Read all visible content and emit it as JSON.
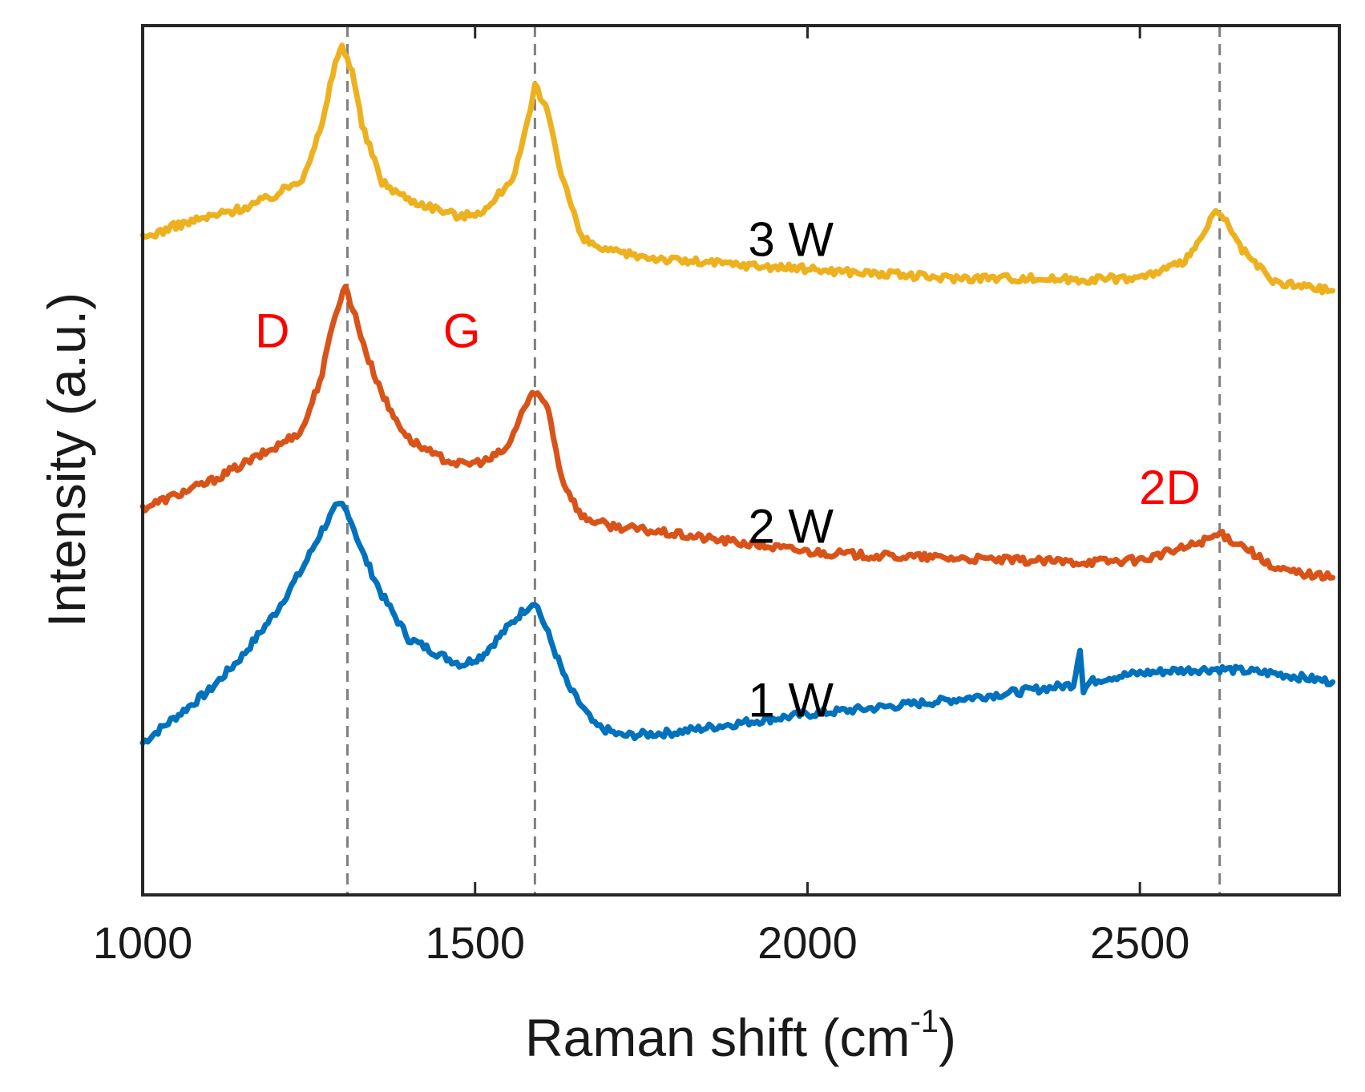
{
  "chart_data": {
    "type": "line",
    "xlabel": "Raman shift (cm",
    "xlabel_sup": "-1",
    "xlabel_close": ")",
    "ylabel": "Intensity (a.u.)",
    "xlim": [
      1000,
      2800
    ],
    "ylim": [
      0,
      100
    ],
    "y_ticks_shown": false,
    "xticks": [
      1000,
      1500,
      2000,
      2500
    ],
    "xtick_labels": [
      "1000",
      "1500",
      "2000",
      "2500"
    ],
    "grid": false,
    "reference_lines": [
      {
        "x": 1308,
        "style": "dashed",
        "color": "#7f7f7f"
      },
      {
        "x": 1590,
        "style": "dashed",
        "color": "#7f7f7f"
      },
      {
        "x": 2620,
        "style": "dashed",
        "color": "#7f7f7f"
      }
    ],
    "series": [
      {
        "name": "1 W",
        "color": "#0072BD",
        "x": [
          1000,
          1050,
          1100,
          1150,
          1200,
          1240,
          1270,
          1290,
          1300,
          1310,
          1330,
          1360,
          1400,
          1450,
          1480,
          1510,
          1540,
          1570,
          1590,
          1610,
          1640,
          1680,
          1720,
          1800,
          1900,
          2000,
          2100,
          2200,
          2300,
          2400,
          2410,
          2415,
          2425,
          2450,
          2500,
          2550,
          2620,
          2700,
          2790
        ],
        "y": [
          17.5,
          20.5,
          23.5,
          27.5,
          32.5,
          37.5,
          42,
          44.5,
          44.8,
          43.8,
          39.5,
          34.5,
          29.5,
          27.5,
          26.5,
          27.5,
          30,
          32.5,
          33.8,
          30,
          24,
          19.5,
          18.3,
          18.7,
          19.8,
          20.8,
          21.5,
          22.3,
          23.2,
          24.2,
          28.5,
          23.5,
          24.5,
          25,
          25.5,
          25.8,
          26,
          25.5,
          24.5
        ]
      },
      {
        "name": "2 W",
        "color": "#D95319",
        "x": [
          1000,
          1050,
          1100,
          1150,
          1200,
          1240,
          1270,
          1290,
          1305,
          1320,
          1340,
          1370,
          1400,
          1440,
          1480,
          1520,
          1550,
          1570,
          1590,
          1610,
          1630,
          1660,
          1700,
          1800,
          1900,
          2000,
          2100,
          2200,
          2300,
          2400,
          2500,
          2570,
          2620,
          2660,
          2700,
          2790
        ],
        "y": [
          44.5,
          46,
          47.5,
          49.5,
          51.5,
          53.5,
          60,
          67,
          70,
          66.5,
          61.5,
          56,
          52.5,
          50.5,
          49.5,
          50,
          51.5,
          55.5,
          58,
          56,
          48,
          43.5,
          42.5,
          41.5,
          40.5,
          39.5,
          39,
          38.8,
          38.5,
          38.3,
          38.5,
          40,
          41.5,
          40,
          37.5,
          36.5
        ]
      },
      {
        "name": "3 W",
        "color": "#EDB120",
        "x": [
          1000,
          1050,
          1100,
          1150,
          1200,
          1240,
          1270,
          1290,
          1300,
          1315,
          1330,
          1360,
          1400,
          1440,
          1480,
          1520,
          1560,
          1580,
          1590,
          1610,
          1630,
          1660,
          1700,
          1800,
          1900,
          2000,
          2100,
          2200,
          2300,
          2400,
          2500,
          2560,
          2590,
          2610,
          2630,
          2650,
          2700,
          2790
        ],
        "y": [
          75.5,
          77,
          78,
          79,
          80.5,
          82.5,
          88.5,
          96,
          97.5,
          95,
          88.5,
          82,
          80,
          79,
          78,
          79,
          83,
          89,
          93,
          90,
          83,
          75.5,
          74,
          73,
          72.5,
          72,
          71.5,
          71,
          71,
          70.8,
          71,
          72.5,
          75,
          78.5,
          77.5,
          74.5,
          70.5,
          69.5
        ]
      }
    ],
    "annotations": [
      {
        "text": "D",
        "x": 1195,
        "y": 63,
        "color": "#ff0000"
      },
      {
        "text": "G",
        "x": 1480,
        "y": 63,
        "color": "#ff0000"
      },
      {
        "text": "2D",
        "x": 2545,
        "y": 45,
        "color": "#ff0000"
      },
      {
        "text": "3 W",
        "x": 1975,
        "y": 73.5,
        "color": "#000000"
      },
      {
        "text": "2 W",
        "x": 1975,
        "y": 40.5,
        "color": "#000000"
      },
      {
        "text": "1 W",
        "x": 1975,
        "y": 20.5,
        "color": "#000000"
      }
    ]
  }
}
